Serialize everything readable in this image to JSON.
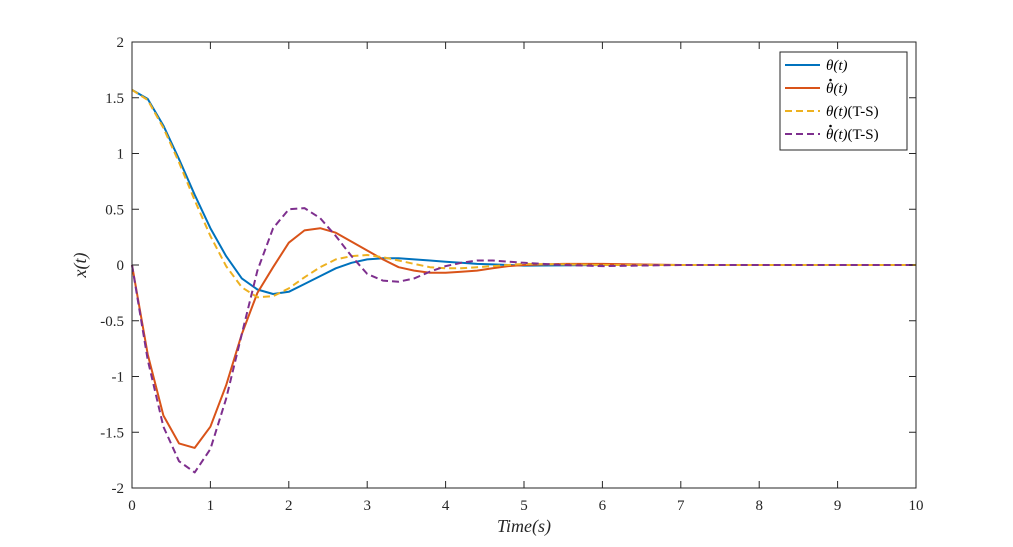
{
  "chart_data": {
    "type": "line",
    "xlabel": "Time(s)",
    "ylabel": "x(t)",
    "xlim": [
      0,
      10
    ],
    "ylim": [
      -2,
      2
    ],
    "xticks": [
      0,
      1,
      2,
      3,
      4,
      5,
      6,
      7,
      8,
      9,
      10
    ],
    "yticks": [
      -2,
      -1.5,
      -1,
      -0.5,
      0,
      0.5,
      1,
      1.5,
      2
    ],
    "xtick_labels": [
      "0",
      "1",
      "2",
      "3",
      "4",
      "5",
      "6",
      "7",
      "8",
      "9",
      "10"
    ],
    "ytick_labels": [
      "-2",
      "-1.5",
      "-1",
      "-0.5",
      "0",
      "0.5",
      "1",
      "1.5",
      "2"
    ],
    "grid": false,
    "legend_position": "top-right",
    "series": [
      {
        "name": "θ(t)",
        "legend_main": "θ(t)",
        "legend_suffix": "",
        "dot": false,
        "color": "#0072BD",
        "dashed": false,
        "x": [
          0,
          0.2,
          0.4,
          0.6,
          0.8,
          1.0,
          1.2,
          1.4,
          1.6,
          1.8,
          2.0,
          2.2,
          2.4,
          2.6,
          2.8,
          3.0,
          3.2,
          3.4,
          3.6,
          3.8,
          4.0,
          4.2,
          4.4,
          4.6,
          4.8,
          5.0,
          5.5,
          6.0,
          7.0,
          8.0,
          9.0,
          10.0
        ],
        "values": [
          1.57,
          1.49,
          1.25,
          0.95,
          0.63,
          0.33,
          0.08,
          -0.12,
          -0.22,
          -0.26,
          -0.24,
          -0.17,
          -0.1,
          -0.03,
          0.02,
          0.05,
          0.06,
          0.06,
          0.05,
          0.04,
          0.03,
          0.02,
          0.01,
          0.005,
          0.0,
          -0.005,
          -0.004,
          0.0,
          0.0,
          0.0,
          0.0,
          0.0
        ]
      },
      {
        "name": "θ̇(t)",
        "legend_main": "θ(t)",
        "legend_suffix": "",
        "dot": true,
        "color": "#D95319",
        "dashed": false,
        "x": [
          0,
          0.2,
          0.4,
          0.6,
          0.8,
          1.0,
          1.2,
          1.4,
          1.6,
          1.8,
          2.0,
          2.2,
          2.4,
          2.6,
          2.8,
          3.0,
          3.2,
          3.4,
          3.6,
          3.8,
          4.0,
          4.2,
          4.4,
          4.6,
          4.8,
          5.0,
          5.5,
          6.0,
          7.0,
          8.0,
          9.0,
          10.0
        ],
        "values": [
          0.0,
          -0.8,
          -1.35,
          -1.6,
          -1.64,
          -1.45,
          -1.08,
          -0.62,
          -0.25,
          -0.02,
          0.2,
          0.31,
          0.33,
          0.29,
          0.21,
          0.13,
          0.05,
          -0.02,
          -0.05,
          -0.07,
          -0.07,
          -0.06,
          -0.05,
          -0.03,
          -0.01,
          0.0,
          0.01,
          0.01,
          0.0,
          0.0,
          0.0,
          0.0
        ]
      },
      {
        "name": "θ(t)(T-S)",
        "legend_main": "θ(t)",
        "legend_suffix": "(T-S)",
        "dot": false,
        "color": "#EDB120",
        "dashed": true,
        "x": [
          0,
          0.2,
          0.4,
          0.6,
          0.8,
          1.0,
          1.2,
          1.4,
          1.6,
          1.8,
          2.0,
          2.2,
          2.4,
          2.6,
          2.8,
          3.0,
          3.2,
          3.4,
          3.6,
          3.8,
          4.0,
          4.2,
          4.4,
          4.6,
          4.8,
          5.0,
          5.5,
          6.0,
          7.0,
          8.0,
          9.0,
          10.0
        ],
        "values": [
          1.57,
          1.48,
          1.23,
          0.92,
          0.58,
          0.26,
          -0.01,
          -0.2,
          -0.29,
          -0.28,
          -0.21,
          -0.11,
          -0.02,
          0.05,
          0.08,
          0.09,
          0.07,
          0.04,
          0.01,
          -0.02,
          -0.03,
          -0.03,
          -0.02,
          -0.01,
          0.0,
          0.01,
          0.005,
          0.0,
          0.0,
          0.0,
          0.0,
          0.0
        ]
      },
      {
        "name": "θ̇(t)(T-S)",
        "legend_main": "θ(t)",
        "legend_suffix": "(T-S)",
        "dot": true,
        "color": "#7E2F8E",
        "dashed": true,
        "x": [
          0,
          0.2,
          0.4,
          0.6,
          0.8,
          1.0,
          1.2,
          1.4,
          1.6,
          1.8,
          2.0,
          2.2,
          2.4,
          2.6,
          2.8,
          3.0,
          3.2,
          3.4,
          3.6,
          3.8,
          4.0,
          4.2,
          4.4,
          4.6,
          4.8,
          5.0,
          5.5,
          6.0,
          7.0,
          8.0,
          9.0,
          10.0
        ],
        "values": [
          0.0,
          -0.85,
          -1.45,
          -1.76,
          -1.86,
          -1.65,
          -1.2,
          -0.62,
          -0.05,
          0.33,
          0.5,
          0.51,
          0.42,
          0.26,
          0.08,
          -0.08,
          -0.14,
          -0.15,
          -0.12,
          -0.06,
          -0.01,
          0.02,
          0.04,
          0.04,
          0.03,
          0.02,
          0.0,
          -0.01,
          0.0,
          0.0,
          0.0,
          0.0
        ]
      }
    ]
  }
}
